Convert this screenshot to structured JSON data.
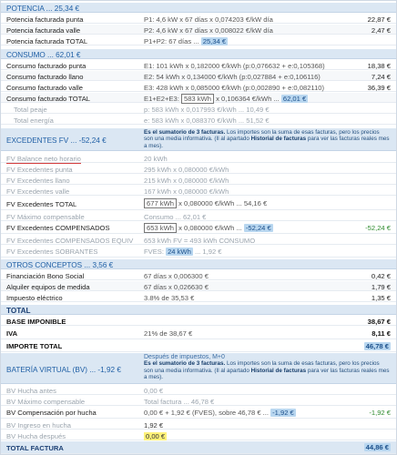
{
  "potencia": {
    "header": "POTENCIA ... 25,34 €",
    "rows": [
      {
        "label": "Potencia facturada punta",
        "formula": "P1: 4,6 kW x 67 días x 0,074203 €/kW día",
        "value": "22,87 €"
      },
      {
        "label": "Potencia facturada valle",
        "formula": "P2: 4,6 kW x 67 días x 0,008022 €/kW día",
        "value": "2,47 €"
      },
      {
        "label": "Potencia facturada TOTAL",
        "formula": "P1+P2: 67 días ...",
        "chip": "25,34 €"
      }
    ]
  },
  "consumo": {
    "header": "CONSUMO ... 62,01 €",
    "rows": [
      {
        "label": "Consumo facturado punta",
        "formula": "E1: 101 kWh x 0,182000 €/kWh (p:0,076632 + e:0,105368)",
        "value": "18,38 €"
      },
      {
        "label": "Consumo facturado llano",
        "formula": "E2: 54 kWh x 0,134000 €/kWh (p:0,027884 + e:0,106116)",
        "value": "7,24 €"
      },
      {
        "label": "Consumo facturado valle",
        "formula": "E3: 428 kWh x 0,085000 €/kWh (p:0,002890 + e:0,082110)",
        "value": "36,39 €"
      },
      {
        "label": "Consumo facturado TOTAL",
        "formula_pre": "E1+E2+E3:",
        "highlight": "583 kWh",
        "formula_post": "x 0,106364 €/kWh ...",
        "chip": "62,01 €"
      }
    ],
    "sub": [
      {
        "label": "Total peaje",
        "formula": "p: 583 kWh x 0,017993 €/kWh ... 10,49 €"
      },
      {
        "label": "Total energía",
        "formula": "e: 583 kWh x 0,088370 €/kWh ... 51,52 €"
      }
    ]
  },
  "excedentes": {
    "header": "EXCEDENTES FV ... -52,24 €",
    "note_strong": "Es el sumatorio de 3 facturas.",
    "note_text": " Los importes son la suma de esas facturas, pero los precios son una media informativa. (Il al apartado ",
    "note_strong2": "Historial de facturas",
    "note_end": " para ver las facturas reales mes a mes).",
    "rows": [
      {
        "label": "FV Balance neto horario",
        "formula": "20 kWh"
      },
      {
        "label": "FV Excedentes punta",
        "formula": "295 kWh x 0,080000 €/kWh"
      },
      {
        "label": "FV Excedentes llano",
        "formula": "215 kWh x 0,080000 €/kWh"
      },
      {
        "label": "FV Excedentes valle",
        "formula": "167 kWh x 0,080000 €/kWh"
      }
    ],
    "total_label": "FV Excedentes TOTAL",
    "total_kwh": "677 kWh",
    "total_formula": "x 0,080000 €/kWh ... 54,16 €",
    "maximo_label": "FV Máximo compensable",
    "maximo_formula": "Consumo ... 62,01 €",
    "comp_label": "FV Excedentes COMPENSADOS",
    "comp_kwh": "653 kWh",
    "comp_formula": "x 0,080000 €/kWh ...",
    "comp_chip": "-52,24 €",
    "comp_value": "-52,24 €",
    "equiv_label": "FV Excedentes COMPENSADOS EQUIV",
    "equiv_formula": "653 kWh FV = 493 kWh CONSUMO",
    "sobr_label": "FV Excedentes SOBRANTES",
    "sobr_pre": "FVES:",
    "sobr_chip": "24 kWh",
    "sobr_post": "... 1,92 €"
  },
  "otros": {
    "header": "OTROS CONCEPTOS ... 3,56 €",
    "rows": [
      {
        "label": "Financiación Bono Social",
        "formula": "67 días x 0,006300 €",
        "value": "0,42 €"
      },
      {
        "label": "Alquiler equipos de medida",
        "formula": "67 días x 0,026630 €",
        "value": "1,79 €"
      },
      {
        "label": "Impuesto eléctrico",
        "formula": "3.8% de 35,53 €",
        "value": "1,35 €"
      }
    ]
  },
  "total": {
    "header": "TOTAL",
    "base_label": "BASE IMPONIBLE",
    "base_value": "38,67 €",
    "iva_label": "IVA",
    "iva_formula": "21% de 38,67 €",
    "iva_value": "8,11 €",
    "importe_label": "IMPORTE TOTAL",
    "importe_chip": "46,78 €"
  },
  "bateria": {
    "header": "BATERÍA VIRTUAL (BV) ... -1,92 €",
    "note_top": "Después de impuestos, M+0",
    "note_strong": "Es el sumatorio de 3 facturas.",
    "note_text": " Los importes son la suma de esas facturas, pero los precios son una media informativa. (Il al apartado ",
    "note_strong2": "Historial de facturas",
    "note_end": " para ver las facturas reales mes a mes).",
    "hucha_antes_label": "BV Hucha antes",
    "hucha_antes_value": "0,00 €",
    "max_label": "BV Máximo compensable",
    "max_formula": "Total factura ... 46,78 €",
    "comp_label": "BV Compensación por hucha",
    "comp_formula_pre": "0,00 € + 1,92 € (FVES), sobre 46,78 € ...",
    "comp_chip": "-1,92 €",
    "comp_value": "-1,92 €",
    "ingreso_label": "BV Ingreso en hucha",
    "ingreso_value": "1,92 €",
    "despues_label": "BV Hucha después",
    "despues_chip": "0,00 €",
    "total_label": "TOTAL FACTURA",
    "total_chip": "44,86 €"
  }
}
